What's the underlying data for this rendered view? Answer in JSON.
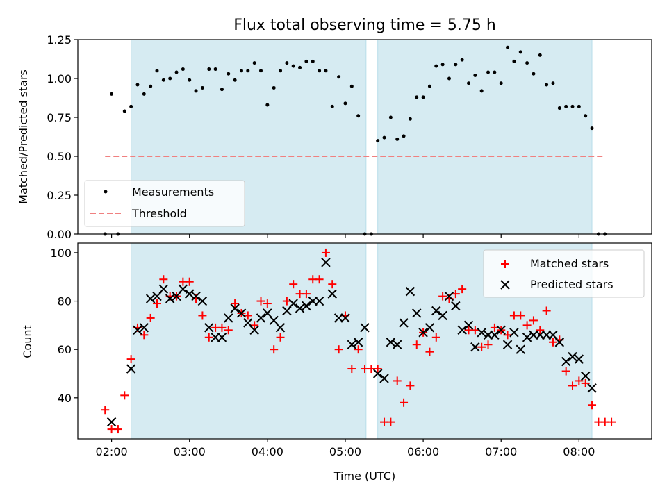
{
  "chart_data": [
    {
      "type": "scatter",
      "title": "Flux total observing time = 5.75 h",
      "xlabel": "",
      "ylabel": "Matched/Predicted stars",
      "xlim": [
        "01:34",
        "08:56"
      ],
      "ylim": [
        0,
        1.25
      ],
      "yticks": [
        "0.00",
        "0.25",
        "0.50",
        "0.75",
        "1.00",
        "1.25"
      ],
      "xticks": [
        "02:00",
        "03:00",
        "04:00",
        "05:00",
        "06:00",
        "07:00",
        "08:00"
      ],
      "grid": false,
      "legend": "lower-left",
      "shaded_intervals": [
        [
          "02:15",
          "05:16"
        ],
        [
          "05:25",
          "08:10"
        ]
      ],
      "threshold": {
        "name": "Threshold",
        "value": 0.5,
        "x_range": [
          "01:55",
          "08:20"
        ],
        "color": "#f08080"
      },
      "series": [
        {
          "name": "Measurements",
          "color": "#000000",
          "marker": "dot",
          "points": [
            [
              "01:55",
              0.0
            ],
            [
              "02:00",
              0.9
            ],
            [
              "02:05",
              0.0
            ],
            [
              "02:10",
              0.79
            ],
            [
              "02:15",
              0.82
            ],
            [
              "02:20",
              0.96
            ],
            [
              "02:25",
              0.9
            ],
            [
              "02:30",
              0.95
            ],
            [
              "02:35",
              1.05
            ],
            [
              "02:40",
              0.99
            ],
            [
              "02:45",
              1.0
            ],
            [
              "02:50",
              1.04
            ],
            [
              "02:55",
              1.06
            ],
            [
              "03:00",
              0.99
            ],
            [
              "03:05",
              0.92
            ],
            [
              "03:10",
              0.94
            ],
            [
              "03:15",
              1.06
            ],
            [
              "03:20",
              1.06
            ],
            [
              "03:25",
              0.93
            ],
            [
              "03:30",
              1.03
            ],
            [
              "03:35",
              0.99
            ],
            [
              "03:40",
              1.05
            ],
            [
              "03:45",
              1.05
            ],
            [
              "03:50",
              1.1
            ],
            [
              "03:55",
              1.05
            ],
            [
              "04:00",
              0.83
            ],
            [
              "04:05",
              0.94
            ],
            [
              "04:10",
              1.05
            ],
            [
              "04:15",
              1.1
            ],
            [
              "04:20",
              1.08
            ],
            [
              "04:25",
              1.07
            ],
            [
              "04:30",
              1.11
            ],
            [
              "04:35",
              1.11
            ],
            [
              "04:40",
              1.05
            ],
            [
              "04:45",
              1.05
            ],
            [
              "04:50",
              0.82
            ],
            [
              "04:55",
              1.01
            ],
            [
              "05:00",
              0.84
            ],
            [
              "05:05",
              0.95
            ],
            [
              "05:10",
              0.76
            ],
            [
              "05:15",
              0.0
            ],
            [
              "05:20",
              0.0
            ],
            [
              "05:25",
              0.6
            ],
            [
              "05:30",
              0.62
            ],
            [
              "05:35",
              0.75
            ],
            [
              "05:40",
              0.61
            ],
            [
              "05:45",
              0.63
            ],
            [
              "05:50",
              0.74
            ],
            [
              "05:55",
              0.88
            ],
            [
              "06:00",
              0.88
            ],
            [
              "06:05",
              0.95
            ],
            [
              "06:10",
              1.08
            ],
            [
              "06:15",
              1.09
            ],
            [
              "06:20",
              1.0
            ],
            [
              "06:25",
              1.09
            ],
            [
              "06:30",
              1.12
            ],
            [
              "06:35",
              0.97
            ],
            [
              "06:40",
              1.02
            ],
            [
              "06:45",
              0.92
            ],
            [
              "06:50",
              1.04
            ],
            [
              "06:55",
              1.04
            ],
            [
              "07:00",
              0.97
            ],
            [
              "07:05",
              1.2
            ],
            [
              "07:10",
              1.11
            ],
            [
              "07:15",
              1.17
            ],
            [
              "07:20",
              1.1
            ],
            [
              "07:25",
              1.03
            ],
            [
              "07:30",
              1.15
            ],
            [
              "07:35",
              0.96
            ],
            [
              "07:40",
              0.97
            ],
            [
              "07:45",
              0.81
            ],
            [
              "07:50",
              0.82
            ],
            [
              "07:55",
              0.82
            ],
            [
              "08:00",
              0.82
            ],
            [
              "08:05",
              0.76
            ],
            [
              "08:10",
              0.68
            ],
            [
              "08:15",
              0.0
            ],
            [
              "08:20",
              0.0
            ]
          ]
        }
      ]
    },
    {
      "type": "scatter",
      "title": "",
      "xlabel": "Time (UTC)",
      "ylabel": "Count",
      "xlim": [
        "01:34",
        "08:56"
      ],
      "ylim": [
        23,
        104
      ],
      "yticks": [
        "40",
        "60",
        "80",
        "100"
      ],
      "xticks": [
        "02:00",
        "03:00",
        "04:00",
        "05:00",
        "06:00",
        "07:00",
        "08:00"
      ],
      "grid": false,
      "legend": "top-right",
      "shaded_intervals": [
        [
          "02:15",
          "05:16"
        ],
        [
          "05:25",
          "08:10"
        ]
      ],
      "series": [
        {
          "name": "Matched stars",
          "color": "#ff0000",
          "marker": "plus",
          "points": [
            [
              "01:55",
              35
            ],
            [
              "02:00",
              27
            ],
            [
              "02:05",
              27
            ],
            [
              "02:10",
              41
            ],
            [
              "02:15",
              56
            ],
            [
              "02:20",
              69
            ],
            [
              "02:25",
              66
            ],
            [
              "02:30",
              73
            ],
            [
              "02:35",
              79
            ],
            [
              "02:40",
              89
            ],
            [
              "02:45",
              82
            ],
            [
              "02:50",
              82
            ],
            [
              "02:55",
              88
            ],
            [
              "03:00",
              88
            ],
            [
              "03:05",
              81
            ],
            [
              "03:10",
              74
            ],
            [
              "03:15",
              65
            ],
            [
              "03:20",
              69
            ],
            [
              "03:25",
              69
            ],
            [
              "03:30",
              68
            ],
            [
              "03:35",
              79
            ],
            [
              "03:40",
              75
            ],
            [
              "03:45",
              74
            ],
            [
              "03:50",
              70
            ],
            [
              "03:55",
              80
            ],
            [
              "04:00",
              79
            ],
            [
              "04:05",
              60
            ],
            [
              "04:10",
              65
            ],
            [
              "04:15",
              80
            ],
            [
              "04:20",
              87
            ],
            [
              "04:25",
              83
            ],
            [
              "04:30",
              83
            ],
            [
              "04:35",
              89
            ],
            [
              "04:40",
              89
            ],
            [
              "04:45",
              100
            ],
            [
              "04:50",
              87
            ],
            [
              "04:55",
              60
            ],
            [
              "05:00",
              74
            ],
            [
              "05:05",
              52
            ],
            [
              "05:10",
              60
            ],
            [
              "05:15",
              52
            ],
            [
              "05:20",
              52
            ],
            [
              "05:25",
              52
            ],
            [
              "05:30",
              30
            ],
            [
              "05:35",
              30
            ],
            [
              "05:40",
              47
            ],
            [
              "05:45",
              38
            ],
            [
              "05:50",
              45
            ],
            [
              "05:55",
              62
            ],
            [
              "06:00",
              67
            ],
            [
              "06:05",
              59
            ],
            [
              "06:10",
              65
            ],
            [
              "06:15",
              82
            ],
            [
              "06:20",
              81
            ],
            [
              "06:25",
              83
            ],
            [
              "06:30",
              85
            ],
            [
              "06:35",
              68
            ],
            [
              "06:40",
              68
            ],
            [
              "06:45",
              61
            ],
            [
              "06:50",
              62
            ],
            [
              "06:55",
              69
            ],
            [
              "07:00",
              68
            ],
            [
              "07:05",
              66
            ],
            [
              "07:10",
              74
            ],
            [
              "07:15",
              74
            ],
            [
              "07:20",
              70
            ],
            [
              "07:25",
              72
            ],
            [
              "07:30",
              68
            ],
            [
              "07:35",
              76
            ],
            [
              "07:40",
              63
            ],
            [
              "07:45",
              64
            ],
            [
              "07:50",
              51
            ],
            [
              "07:55",
              45
            ],
            [
              "08:00",
              47
            ],
            [
              "08:05",
              46
            ],
            [
              "08:10",
              37
            ],
            [
              "08:15",
              30
            ],
            [
              "08:20",
              30
            ],
            [
              "08:25",
              30
            ]
          ]
        },
        {
          "name": "Predicted stars",
          "color": "#000000",
          "marker": "x",
          "points": [
            [
              "02:00",
              30
            ],
            [
              "02:15",
              52
            ],
            [
              "02:20",
              68
            ],
            [
              "02:25",
              69
            ],
            [
              "02:30",
              81
            ],
            [
              "02:35",
              82
            ],
            [
              "02:40",
              85
            ],
            [
              "02:45",
              81
            ],
            [
              "02:50",
              82
            ],
            [
              "02:55",
              85
            ],
            [
              "03:00",
              83
            ],
            [
              "03:05",
              82
            ],
            [
              "03:10",
              80
            ],
            [
              "03:15",
              69
            ],
            [
              "03:20",
              65
            ],
            [
              "03:25",
              65
            ],
            [
              "03:30",
              73
            ],
            [
              "03:35",
              77
            ],
            [
              "03:40",
              75
            ],
            [
              "03:45",
              71
            ],
            [
              "03:50",
              68
            ],
            [
              "03:55",
              73
            ],
            [
              "04:00",
              75
            ],
            [
              "04:05",
              72
            ],
            [
              "04:10",
              69
            ],
            [
              "04:15",
              76
            ],
            [
              "04:20",
              79
            ],
            [
              "04:25",
              77
            ],
            [
              "04:30",
              78
            ],
            [
              "04:35",
              80
            ],
            [
              "04:40",
              80
            ],
            [
              "04:45",
              96
            ],
            [
              "04:50",
              83
            ],
            [
              "04:55",
              73
            ],
            [
              "05:00",
              73
            ],
            [
              "05:05",
              62
            ],
            [
              "05:10",
              63
            ],
            [
              "05:15",
              69
            ],
            [
              "05:25",
              50
            ],
            [
              "05:30",
              48
            ],
            [
              "05:35",
              63
            ],
            [
              "05:40",
              62
            ],
            [
              "05:45",
              71
            ],
            [
              "05:50",
              84
            ],
            [
              "05:55",
              75
            ],
            [
              "06:00",
              67
            ],
            [
              "06:05",
              69
            ],
            [
              "06:10",
              76
            ],
            [
              "06:15",
              74
            ],
            [
              "06:20",
              82
            ],
            [
              "06:25",
              78
            ],
            [
              "06:30",
              68
            ],
            [
              "06:35",
              70
            ],
            [
              "06:40",
              61
            ],
            [
              "06:45",
              67
            ],
            [
              "06:50",
              66
            ],
            [
              "06:55",
              66
            ],
            [
              "07:00",
              68
            ],
            [
              "07:05",
              62
            ],
            [
              "07:10",
              67
            ],
            [
              "07:15",
              60
            ],
            [
              "07:20",
              65
            ],
            [
              "07:25",
              66
            ],
            [
              "07:30",
              66
            ],
            [
              "07:35",
              66
            ],
            [
              "07:40",
              66
            ],
            [
              "07:45",
              63
            ],
            [
              "07:50",
              55
            ],
            [
              "07:55",
              57
            ],
            [
              "08:00",
              56
            ],
            [
              "08:05",
              49
            ],
            [
              "08:10",
              44
            ]
          ]
        }
      ]
    }
  ]
}
